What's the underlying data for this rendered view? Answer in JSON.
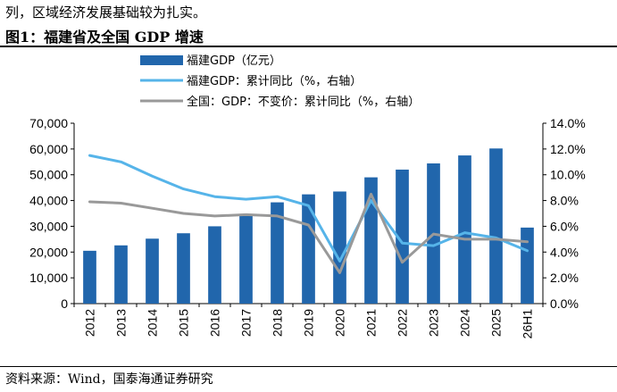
{
  "header": {
    "intro_text": "列，区域经济发展基础较为扎实。",
    "figure_title": "图1：福建省及全国 GDP 增速"
  },
  "footer": {
    "source": "资料来源：Wind，国泰海通证券研究"
  },
  "chart_data": {
    "type": "bar",
    "title": "",
    "xlabel": "",
    "ylabel": "",
    "categories": [
      "2012",
      "2013",
      "2014",
      "2015",
      "2016",
      "2017",
      "2018",
      "2019",
      "2020",
      "2021",
      "2022",
      "2023",
      "2024",
      "2025",
      "26H1"
    ],
    "left_axis": {
      "ylim": [
        0,
        70000
      ],
      "ticks": [
        "0",
        "10,000",
        "20,000",
        "30,000",
        "40,000",
        "50,000",
        "60,000",
        "70,000"
      ]
    },
    "right_axis": {
      "ylim": [
        0,
        14
      ],
      "ticks": [
        "0.0%",
        "2.0%",
        "4.0%",
        "6.0%",
        "8.0%",
        "10.0%",
        "12.0%",
        "14.0%"
      ]
    },
    "grid": false,
    "legend_position": "top-left",
    "series": [
      {
        "name": "福建GDP（亿元）",
        "type": "bar",
        "axis": "left",
        "color": "#2166ac",
        "values": [
          20500,
          22600,
          25200,
          27300,
          30000,
          34000,
          39300,
          42400,
          43500,
          49000,
          52000,
          54400,
          57500,
          60200,
          29500
        ]
      },
      {
        "name": "福建GDP：累计同比（%，右轴）",
        "type": "line",
        "axis": "right",
        "color": "#56b4e9",
        "values": [
          11.5,
          11.0,
          9.9,
          8.9,
          8.3,
          8.1,
          8.3,
          7.6,
          3.3,
          8.0,
          4.7,
          4.5,
          5.5,
          5.1,
          4.1
        ]
      },
      {
        "name": "全国：GDP：不变价：累计同比（%，右轴）",
        "type": "line",
        "axis": "right",
        "color": "#999999",
        "values": [
          7.9,
          7.8,
          7.4,
          7.0,
          6.8,
          6.9,
          6.8,
          6.1,
          2.4,
          8.5,
          3.2,
          5.4,
          5.0,
          5.0,
          4.8
        ]
      }
    ]
  }
}
